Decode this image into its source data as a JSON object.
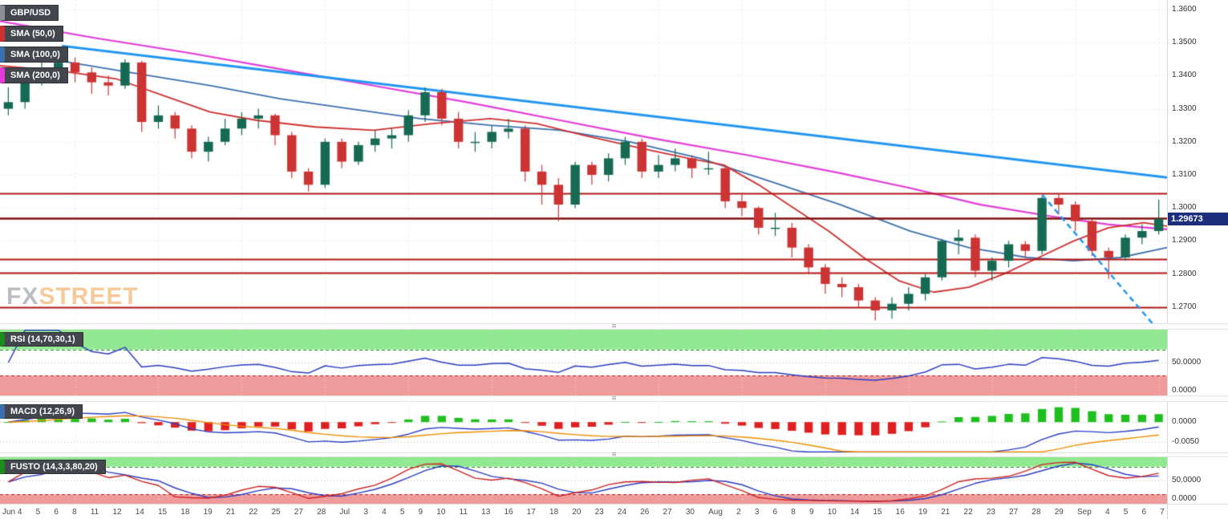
{
  "price_badge": "1.29673",
  "watermark": {
    "fx": "FX",
    "street": "STREET"
  },
  "legend": {
    "symbol": "GBP/USD",
    "sma50": "SMA (50,0)",
    "sma100": "SMA (100,0)",
    "sma200": "SMA (200,0)"
  },
  "colors": {
    "up": "#166a53",
    "down": "#cc3333",
    "sma50": "#cf2f2f",
    "sma100": "#3c6fae",
    "sma200": "#e33ad8",
    "trendline": "#2196f3",
    "hline": "#b01515",
    "hline_strong": "#801010",
    "rsi_line": "#2b3cc4",
    "macd_line": "#2b3cc4",
    "signal_line": "#f08c00",
    "hist_up": "#1fbf1f",
    "hist_down": "#e02020",
    "stoch_k": "#d02020",
    "stoch_d": "#2b3cc4",
    "band_green": "#90e890",
    "band_red": "#f09b9b",
    "band_green_edge": "#1c8a1c",
    "band_red_edge": "#b22222",
    "badge_bg": "#1d2f7c",
    "grid": "#dcdcdc",
    "symbol_accent": "#8a9097"
  },
  "chart_data": {
    "type": "candlestick",
    "title": "GBP/USD with SMA(50), SMA(100), SMA(200), RSI, MACD, Full Stochastic",
    "symbol": "GBP/USD",
    "current_price": 1.29673,
    "y_axis_labels": [
      "1.3600",
      "1.3500",
      "1.3400",
      "1.3300",
      "1.3200",
      "1.3100",
      "1.3000",
      "1.2900",
      "1.2800",
      "1.2700"
    ],
    "y_range": [
      1.2651,
      1.3629
    ],
    "horizontal_levels": [
      {
        "value": 1.3045,
        "strong": false
      },
      {
        "value": 1.297,
        "strong": true
      },
      {
        "value": 1.2845,
        "strong": false
      },
      {
        "value": 1.2805,
        "strong": false
      },
      {
        "value": 1.27,
        "strong": false
      }
    ],
    "trendline": {
      "from": [
        0.053,
        1.349
      ],
      "to": [
        1.0,
        1.3092
      ]
    },
    "dashed_trendline": {
      "from": [
        0.893,
        1.304
      ],
      "to": [
        0.99,
        1.264
      ]
    },
    "x_labels": [
      "Jun 4",
      "5",
      "6",
      "8",
      "11",
      "12",
      "14",
      "15",
      "18",
      "19",
      "21",
      "22",
      "25",
      "27",
      "28",
      "Jul",
      "3",
      "4",
      "5",
      "9",
      "10",
      "11",
      "13",
      "16",
      "17",
      "18",
      "20",
      "23",
      "24",
      "26",
      "27",
      "30",
      "Aug",
      "2",
      "3",
      "6",
      "8",
      "9",
      "10",
      "14",
      "15",
      "16",
      "19",
      "21",
      "22",
      "23",
      "27",
      "28",
      "29",
      "Sep",
      "4",
      "5",
      "6",
      "7"
    ],
    "candles": [
      [
        1.33,
        1.3365,
        1.328,
        1.332
      ],
      [
        1.332,
        1.3415,
        1.33,
        1.34
      ],
      [
        1.34,
        1.3445,
        1.337,
        1.342
      ],
      [
        1.342,
        1.347,
        1.34,
        1.344
      ],
      [
        1.344,
        1.3455,
        1.338,
        1.341
      ],
      [
        1.341,
        1.3425,
        1.3345,
        1.338
      ],
      [
        1.338,
        1.34,
        1.334,
        1.337
      ],
      [
        1.337,
        1.345,
        1.336,
        1.344
      ],
      [
        1.344,
        1.3445,
        1.323,
        1.326
      ],
      [
        1.326,
        1.331,
        1.324,
        1.328
      ],
      [
        1.328,
        1.329,
        1.321,
        1.324
      ],
      [
        1.324,
        1.325,
        1.315,
        1.317
      ],
      [
        1.317,
        1.3215,
        1.314,
        1.32
      ],
      [
        1.32,
        1.327,
        1.319,
        1.324
      ],
      [
        1.324,
        1.329,
        1.322,
        1.327
      ],
      [
        1.327,
        1.33,
        1.324,
        1.328
      ],
      [
        1.328,
        1.3285,
        1.319,
        1.322
      ],
      [
        1.322,
        1.323,
        1.309,
        1.311
      ],
      [
        1.311,
        1.312,
        1.305,
        1.307
      ],
      [
        1.307,
        1.321,
        1.306,
        1.32
      ],
      [
        1.32,
        1.321,
        1.312,
        1.314
      ],
      [
        1.314,
        1.32,
        1.313,
        1.319
      ],
      [
        1.319,
        1.3235,
        1.317,
        1.321
      ],
      [
        1.321,
        1.324,
        1.318,
        1.322
      ],
      [
        1.322,
        1.3295,
        1.32,
        1.328
      ],
      [
        1.328,
        1.3365,
        1.326,
        1.335
      ],
      [
        1.335,
        1.336,
        1.325,
        1.327
      ],
      [
        1.327,
        1.329,
        1.318,
        1.32
      ],
      [
        1.32,
        1.323,
        1.317,
        1.32
      ],
      [
        1.32,
        1.325,
        1.318,
        1.323
      ],
      [
        1.323,
        1.327,
        1.321,
        1.324
      ],
      [
        1.324,
        1.325,
        1.308,
        1.311
      ],
      [
        1.311,
        1.313,
        1.301,
        1.307
      ],
      [
        1.307,
        1.309,
        1.296,
        1.301
      ],
      [
        1.301,
        1.314,
        1.3,
        1.313
      ],
      [
        1.313,
        1.314,
        1.307,
        1.31
      ],
      [
        1.31,
        1.3165,
        1.308,
        1.315
      ],
      [
        1.315,
        1.3215,
        1.313,
        1.32
      ],
      [
        1.32,
        1.321,
        1.309,
        1.311
      ],
      [
        1.311,
        1.316,
        1.309,
        1.313
      ],
      [
        1.313,
        1.318,
        1.311,
        1.315
      ],
      [
        1.315,
        1.316,
        1.309,
        1.312
      ],
      [
        1.312,
        1.317,
        1.31,
        1.312
      ],
      [
        1.312,
        1.313,
        1.3,
        1.302
      ],
      [
        1.302,
        1.304,
        1.2975,
        1.3
      ],
      [
        1.3,
        1.3005,
        1.292,
        1.294
      ],
      [
        1.294,
        1.2985,
        1.2915,
        1.294
      ],
      [
        1.294,
        1.2955,
        1.285,
        1.288
      ],
      [
        1.288,
        1.289,
        1.28,
        1.282
      ],
      [
        1.282,
        1.283,
        1.274,
        1.277
      ],
      [
        1.277,
        1.279,
        1.273,
        1.276
      ],
      [
        1.276,
        1.277,
        1.27,
        1.272
      ],
      [
        1.272,
        1.273,
        1.266,
        1.269
      ],
      [
        1.269,
        1.273,
        1.2665,
        1.271
      ],
      [
        1.271,
        1.276,
        1.269,
        1.274
      ],
      [
        1.274,
        1.28,
        1.272,
        1.279
      ],
      [
        1.279,
        1.2905,
        1.278,
        1.29
      ],
      [
        1.29,
        1.2935,
        1.286,
        1.291
      ],
      [
        1.291,
        1.292,
        1.279,
        1.281
      ],
      [
        1.281,
        1.285,
        1.278,
        1.284
      ],
      [
        1.284,
        1.29,
        1.282,
        1.289
      ],
      [
        1.289,
        1.29,
        1.285,
        1.287
      ],
      [
        1.287,
        1.3035,
        1.286,
        1.303
      ],
      [
        1.303,
        1.3045,
        1.298,
        1.301
      ],
      [
        1.301,
        1.302,
        1.293,
        1.296
      ],
      [
        1.296,
        1.2965,
        1.2855,
        1.287
      ],
      [
        1.287,
        1.288,
        1.2785,
        1.285
      ],
      [
        1.285,
        1.292,
        1.284,
        1.291
      ],
      [
        1.291,
        1.295,
        1.289,
        1.293
      ],
      [
        1.293,
        1.3025,
        1.292,
        1.2967
      ]
    ],
    "sma50_points": [
      [
        0,
        1.343
      ],
      [
        0.05,
        1.3415
      ],
      [
        0.1,
        1.339
      ],
      [
        0.14,
        1.334
      ],
      [
        0.18,
        1.329
      ],
      [
        0.22,
        1.3265
      ],
      [
        0.27,
        1.3245
      ],
      [
        0.32,
        1.3235
      ],
      [
        0.37,
        1.3255
      ],
      [
        0.42,
        1.327
      ],
      [
        0.46,
        1.3255
      ],
      [
        0.5,
        1.322
      ],
      [
        0.55,
        1.318
      ],
      [
        0.59,
        1.315
      ],
      [
        0.62,
        1.313
      ],
      [
        0.65,
        1.307
      ],
      [
        0.68,
        1.3
      ],
      [
        0.71,
        1.293
      ],
      [
        0.74,
        1.285
      ],
      [
        0.77,
        1.278
      ],
      [
        0.8,
        1.2745
      ],
      [
        0.83,
        1.276
      ],
      [
        0.86,
        1.28
      ],
      [
        0.89,
        1.285
      ],
      [
        0.92,
        1.29
      ],
      [
        0.95,
        1.294
      ],
      [
        0.98,
        1.2955
      ],
      [
        1.0,
        1.2945
      ]
    ],
    "sma100_points": [
      [
        0,
        1.348
      ],
      [
        0.06,
        1.344
      ],
      [
        0.12,
        1.3405
      ],
      [
        0.18,
        1.337
      ],
      [
        0.24,
        1.333
      ],
      [
        0.3,
        1.33
      ],
      [
        0.36,
        1.327
      ],
      [
        0.42,
        1.325
      ],
      [
        0.48,
        1.3235
      ],
      [
        0.54,
        1.32
      ],
      [
        0.6,
        1.315
      ],
      [
        0.66,
        1.308
      ],
      [
        0.72,
        1.301
      ],
      [
        0.78,
        1.293
      ],
      [
        0.83,
        1.288
      ],
      [
        0.88,
        1.285
      ],
      [
        0.92,
        1.284
      ],
      [
        0.96,
        1.285
      ],
      [
        1.0,
        1.288
      ]
    ],
    "sma200_points": [
      [
        0,
        1.3565
      ],
      [
        0.08,
        1.3515
      ],
      [
        0.16,
        1.347
      ],
      [
        0.24,
        1.342
      ],
      [
        0.32,
        1.337
      ],
      [
        0.4,
        1.332
      ],
      [
        0.48,
        1.3265
      ],
      [
        0.56,
        1.321
      ],
      [
        0.64,
        1.316
      ],
      [
        0.72,
        1.3105
      ],
      [
        0.78,
        1.306
      ],
      [
        0.84,
        1.301
      ],
      [
        0.9,
        1.2975
      ],
      [
        0.95,
        1.295
      ],
      [
        1.0,
        1.2935
      ]
    ],
    "panels": {
      "rsi": {
        "label": "RSI (14,70,30,1)",
        "period": 14,
        "upper": 70,
        "lower": 30,
        "range": [
          0,
          100
        ],
        "axis_labels": [
          {
            "text": "50.0000",
            "value": 50
          },
          {
            "text": "0.0000",
            "value": 0
          }
        ]
      },
      "macd": {
        "label": "MACD (12,26,9)",
        "fast": 12,
        "slow": 26,
        "signal": 9,
        "range": [
          -0.0075,
          0.005
        ],
        "axis_labels": [
          {
            "text": "0.0000",
            "value": 0
          },
          {
            "text": "-0.0050",
            "value": -0.005
          }
        ]
      },
      "stoch": {
        "label": "FUSTO (14,3,3,80,20)",
        "k_period": 14,
        "k_smooth": 3,
        "d_period": 3,
        "upper": 80,
        "lower": 20,
        "range": [
          0,
          100
        ],
        "axis_labels": [
          {
            "text": "50.0000",
            "value": 50
          },
          {
            "text": "0.0000",
            "value": 0
          }
        ]
      }
    }
  }
}
